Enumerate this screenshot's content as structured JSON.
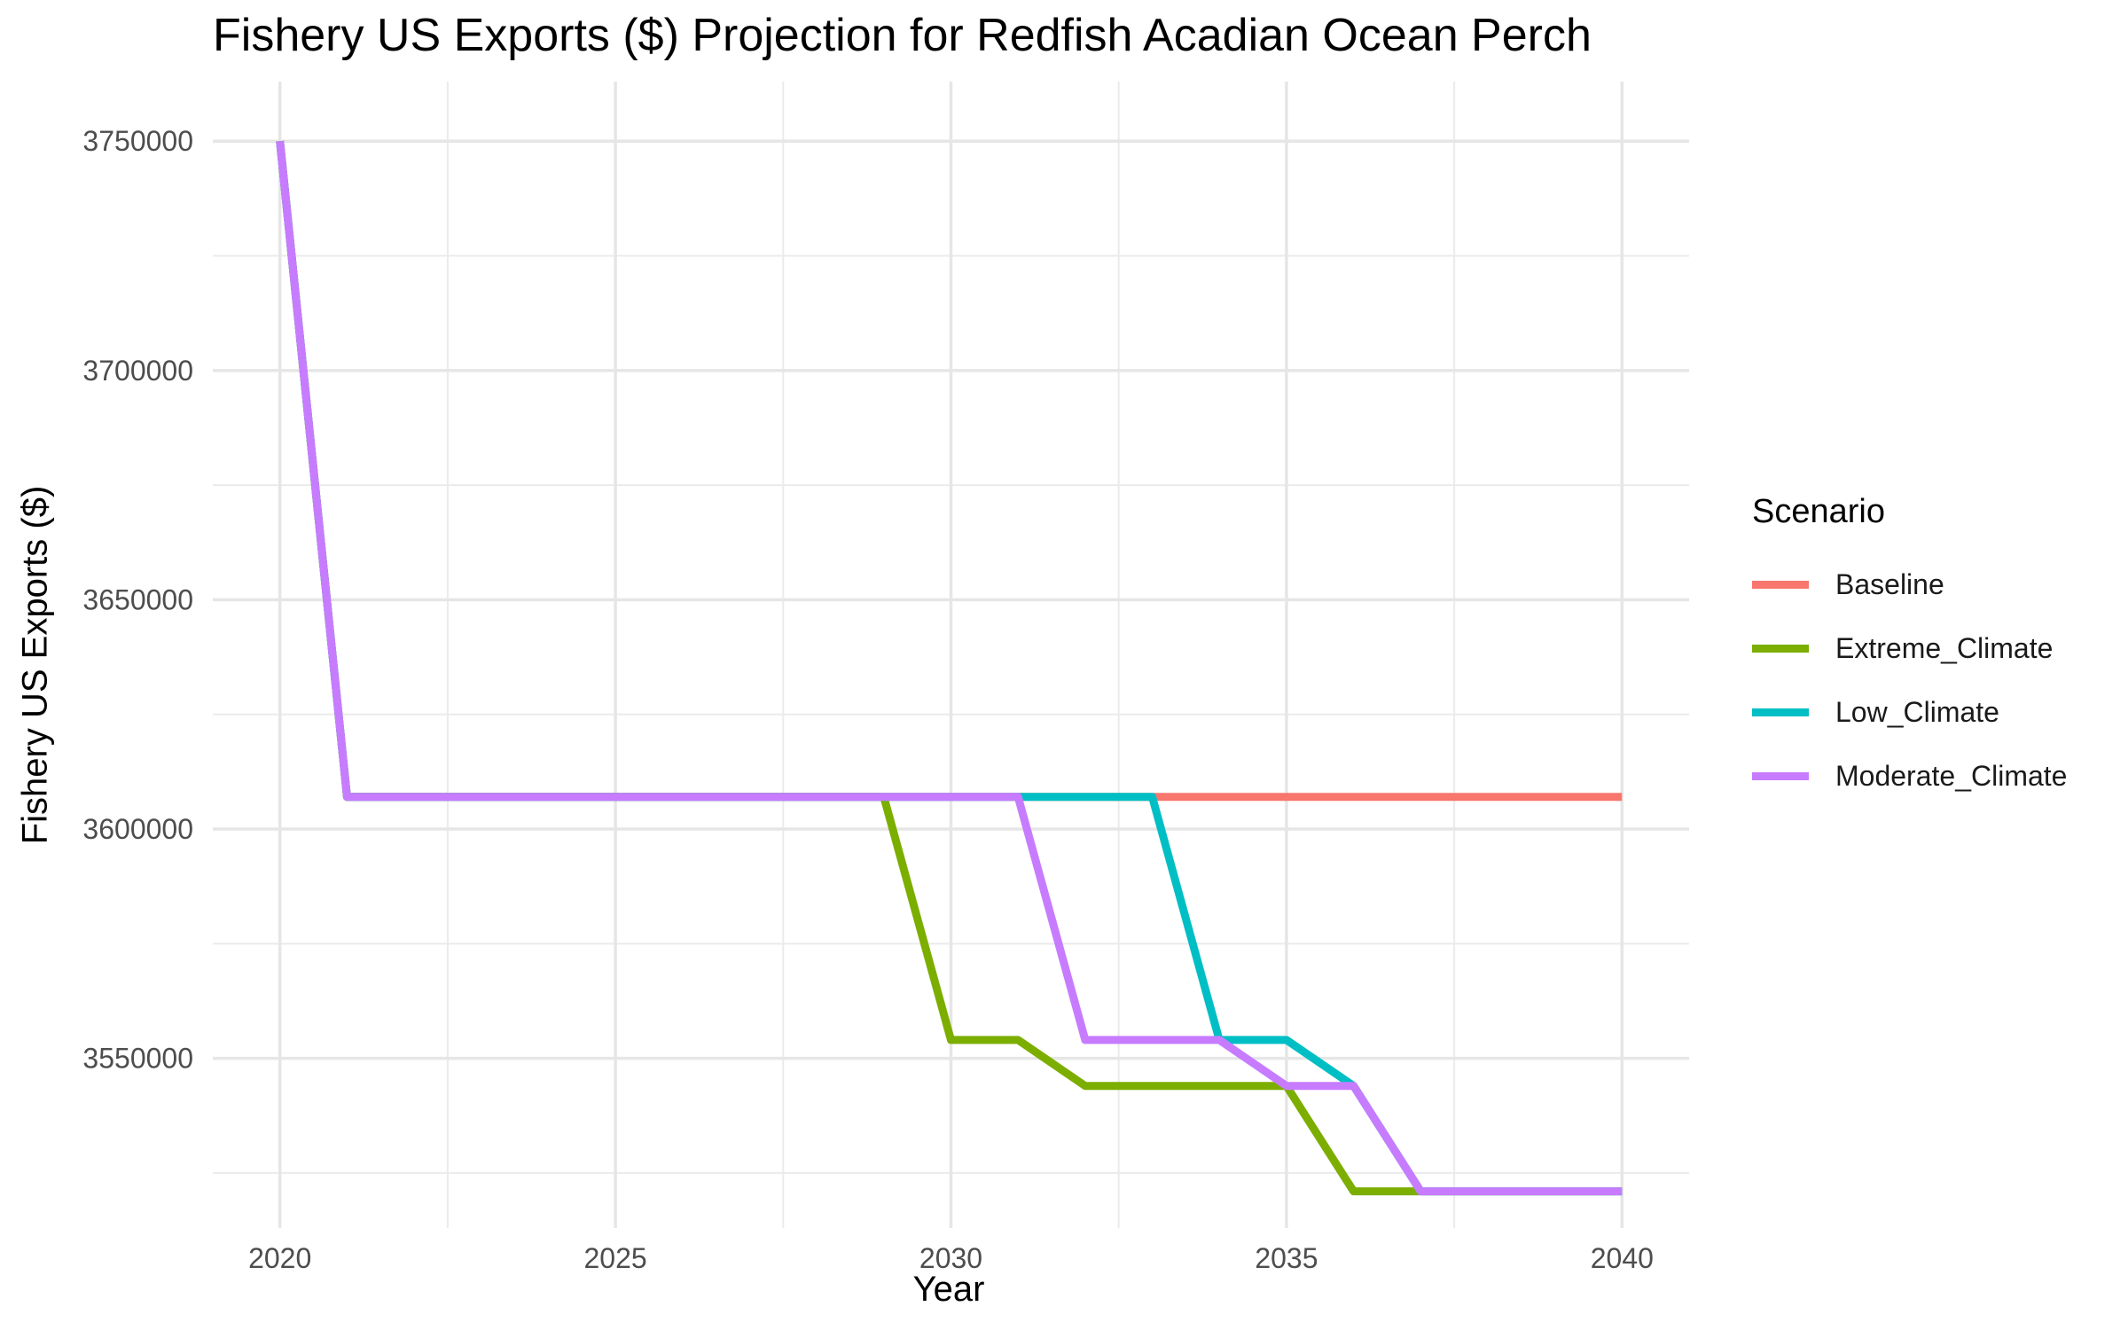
{
  "chart_data": {
    "type": "line",
    "title": "Fishery US Exports ($) Projection for Redfish Acadian Ocean Perch",
    "xlabel": "Year",
    "ylabel": "Fishery US Exports ($)",
    "xlim": [
      2019.0,
      2041.0
    ],
    "ylim": [
      3513000,
      3763000
    ],
    "x_ticks": [
      2020,
      2025,
      2030,
      2035,
      2040
    ],
    "y_ticks": [
      3550000,
      3600000,
      3650000,
      3700000,
      3750000
    ],
    "grid": true,
    "legend": {
      "title": "Scenario",
      "position": "right"
    },
    "x": [
      2020,
      2021,
      2022,
      2023,
      2024,
      2025,
      2026,
      2027,
      2028,
      2029,
      2030,
      2031,
      2032,
      2033,
      2034,
      2035,
      2036,
      2037,
      2038,
      2039,
      2040
    ],
    "series": [
      {
        "name": "Baseline",
        "color": "#F8766D",
        "values": [
          3750000,
          3607000,
          3607000,
          3607000,
          3607000,
          3607000,
          3607000,
          3607000,
          3607000,
          3607000,
          3607000,
          3607000,
          3607000,
          3607000,
          3607000,
          3607000,
          3607000,
          3607000,
          3607000,
          3607000,
          3607000
        ]
      },
      {
        "name": "Extreme_Climate",
        "color": "#7CAE00",
        "values": [
          3750000,
          3607000,
          3607000,
          3607000,
          3607000,
          3607000,
          3607000,
          3607000,
          3607000,
          3607000,
          3554000,
          3554000,
          3544000,
          3544000,
          3544000,
          3544000,
          3521000,
          3521000,
          3521000,
          3521000,
          3521000
        ]
      },
      {
        "name": "Low_Climate",
        "color": "#00BFC4",
        "values": [
          3750000,
          3607000,
          3607000,
          3607000,
          3607000,
          3607000,
          3607000,
          3607000,
          3607000,
          3607000,
          3607000,
          3607000,
          3607000,
          3607000,
          3554000,
          3554000,
          3544000,
          3521000,
          3521000,
          3521000,
          3521000
        ]
      },
      {
        "name": "Moderate_Climate",
        "color": "#C77CFF",
        "values": [
          3750000,
          3607000,
          3607000,
          3607000,
          3607000,
          3607000,
          3607000,
          3607000,
          3607000,
          3607000,
          3607000,
          3607000,
          3554000,
          3554000,
          3554000,
          3544000,
          3544000,
          3521000,
          3521000,
          3521000,
          3521000
        ]
      }
    ]
  }
}
